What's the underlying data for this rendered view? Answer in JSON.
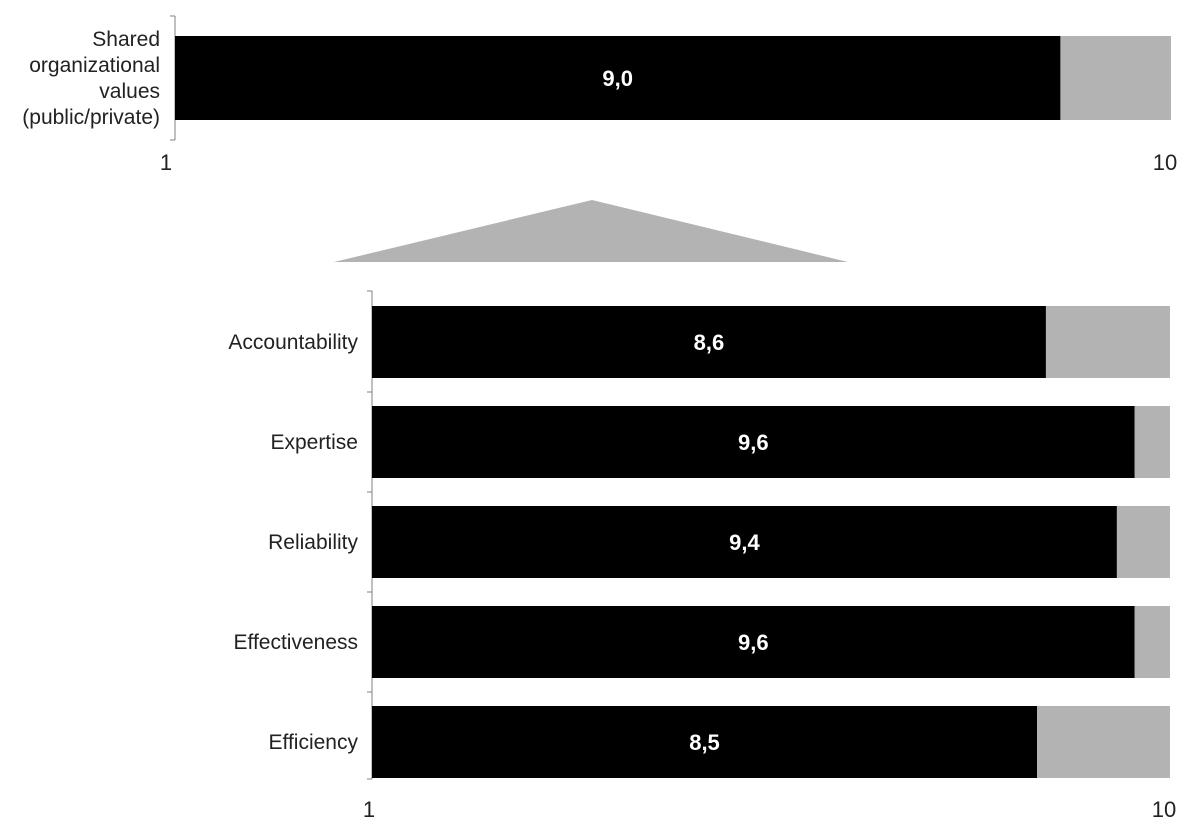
{
  "chart_data": [
    {
      "type": "bar",
      "orientation": "horizontal",
      "stacked": true,
      "categories": [
        "Shared organizational values (public/private)"
      ],
      "category_lines": [
        [
          "Shared",
          "organizational",
          "values",
          "(public/private)"
        ]
      ],
      "values": [
        9.0
      ],
      "value_labels": [
        "9,0"
      ],
      "xlim": [
        1,
        10
      ],
      "xticks": [
        "1",
        "10"
      ],
      "colors": {
        "value": "#000000",
        "remainder": "#b3b3b3",
        "label": "#ffffff"
      }
    },
    {
      "type": "bar",
      "orientation": "horizontal",
      "stacked": true,
      "categories": [
        "Accountability",
        "Expertise",
        "Reliability",
        "Effectiveness",
        "Efficiency"
      ],
      "values": [
        8.6,
        9.6,
        9.4,
        9.6,
        8.5
      ],
      "value_labels": [
        "8,6",
        "9,6",
        "9,4",
        "9,6",
        "8,5"
      ],
      "xlim": [
        1,
        10
      ],
      "xticks": [
        "1",
        "10"
      ],
      "colors": {
        "value": "#000000",
        "remainder": "#b3b3b3",
        "label": "#ffffff"
      }
    }
  ],
  "connector": {
    "shape": "triangle",
    "color": "#b3b3b3"
  }
}
